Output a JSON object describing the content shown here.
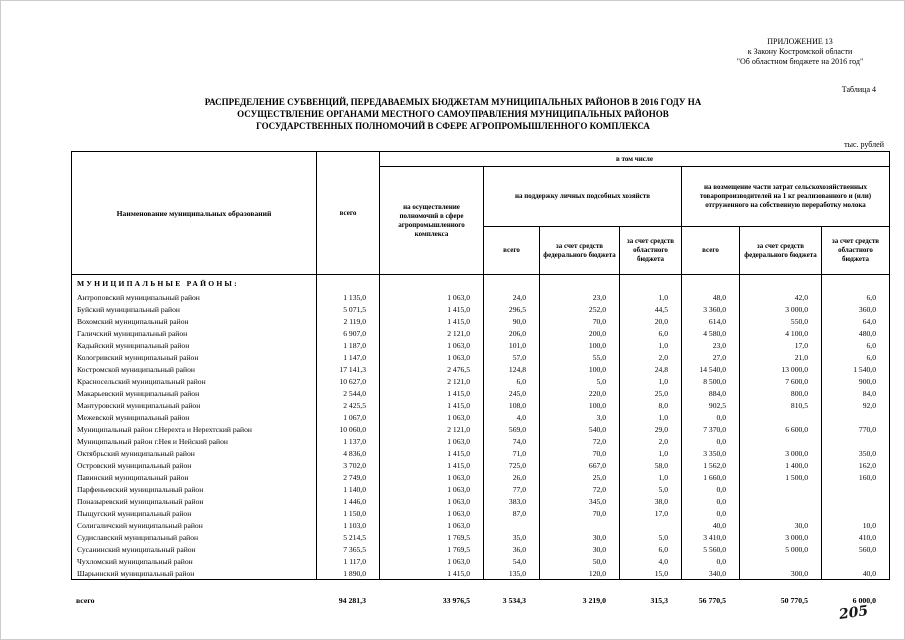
{
  "header": {
    "appendix_lines": [
      "ПРИЛОЖЕНИЕ 13",
      "к Закону Костромской области",
      "\"Об областном бюджете на 2016 год\""
    ],
    "table_label": "Таблица 4",
    "title_lines": [
      "РАСПРЕДЕЛЕНИЕ СУБВЕНЦИЙ, ПЕРЕДАВАЕМЫХ БЮДЖЕТАМ МУНИЦИПАЛЬНЫХ РАЙОНОВ В 2016 ГОДУ НА",
      "ОСУЩЕСТВЛЕНИЕ ОРГАНАМИ МЕСТНОГО САМОУПРАВЛЕНИЯ  МУНИЦИПАЛЬНЫХ РАЙОНОВ",
      "ГОСУДАРСТВЕННЫХ ПОЛНОМОЧИЙ В СФЕРЕ АГРОПРОМЫШЛЕННОГО КОМПЛЕКСА"
    ],
    "units": "тыс. рублей",
    "page_number": "205"
  },
  "table": {
    "headers": {
      "name": "Наименование муниципальных образований",
      "total": "всего",
      "including": "в том числе",
      "powers": "на осуществление полномочий в сфере агропромышленного комплекса",
      "support_group": "на поддержку личных подсобных хозяйств",
      "milk_group": "на возмещение части затрат сельскохозяйственных товаропроизводителей на 1 кг реализованного и (или) отгруженного на собственную переработку молока",
      "sub_total": "всего",
      "sub_federal": "за счет средств федерального бюджета",
      "sub_regional": "за счет средств областного бюджета"
    },
    "section": "МУНИЦИПАЛЬНЫЕ РАЙОНЫ:",
    "rows": [
      {
        "name": "Антроповский муниципальный район",
        "values": [
          "1 135,0",
          "1 063,0",
          "24,0",
          "23,0",
          "1,0",
          "48,0",
          "42,0",
          "6,0"
        ]
      },
      {
        "name": "Буйский муниципальный район",
        "values": [
          "5 071,5",
          "1 415,0",
          "296,5",
          "252,0",
          "44,5",
          "3 360,0",
          "3 000,0",
          "360,0"
        ]
      },
      {
        "name": "Вохомский муниципальный район",
        "values": [
          "2 119,0",
          "1 415,0",
          "90,0",
          "70,0",
          "20,0",
          "614,0",
          "550,0",
          "64,0"
        ]
      },
      {
        "name": "Галичский муниципальный район",
        "values": [
          "6 907,0",
          "2 121,0",
          "206,0",
          "200,0",
          "6,0",
          "4 580,0",
          "4 100,0",
          "480,0"
        ]
      },
      {
        "name": "Кадыйский муниципальный район",
        "values": [
          "1 187,0",
          "1 063,0",
          "101,0",
          "100,0",
          "1,0",
          "23,0",
          "17,0",
          "6,0"
        ]
      },
      {
        "name": "Кологривский муниципальный район",
        "values": [
          "1 147,0",
          "1 063,0",
          "57,0",
          "55,0",
          "2,0",
          "27,0",
          "21,0",
          "6,0"
        ]
      },
      {
        "name": "Костромской муниципальный район",
        "values": [
          "17 141,3",
          "2 476,5",
          "124,8",
          "100,0",
          "24,8",
          "14 540,0",
          "13 000,0",
          "1 540,0"
        ]
      },
      {
        "name": "Красносельский муниципальный район",
        "values": [
          "10 627,0",
          "2 121,0",
          "6,0",
          "5,0",
          "1,0",
          "8 500,0",
          "7 600,0",
          "900,0"
        ]
      },
      {
        "name": "Макарьевский муниципальный район",
        "values": [
          "2 544,0",
          "1 415,0",
          "245,0",
          "220,0",
          "25,0",
          "884,0",
          "800,0",
          "84,0"
        ]
      },
      {
        "name": "Мантуровский муниципальный район",
        "values": [
          "2 425,5",
          "1 415,0",
          "108,0",
          "100,0",
          "8,0",
          "902,5",
          "810,5",
          "92,0"
        ]
      },
      {
        "name": "Межевской муниципальный район",
        "values": [
          "1 067,0",
          "1 063,0",
          "4,0",
          "3,0",
          "1,0",
          "0,0",
          "",
          ""
        ]
      },
      {
        "name": "Муниципальный район г.Нерехта и Нерехтский район",
        "values": [
          "10 060,0",
          "2 121,0",
          "569,0",
          "540,0",
          "29,0",
          "7 370,0",
          "6 600,0",
          "770,0"
        ]
      },
      {
        "name": "Муниципальный район г.Нея и Нейский район",
        "values": [
          "1 137,0",
          "1 063,0",
          "74,0",
          "72,0",
          "2,0",
          "0,0",
          "",
          ""
        ]
      },
      {
        "name": "Октябрьский муниципальный район",
        "values": [
          "4 836,0",
          "1 415,0",
          "71,0",
          "70,0",
          "1,0",
          "3 350,0",
          "3 000,0",
          "350,0"
        ]
      },
      {
        "name": "Островский муниципальный район",
        "values": [
          "3 702,0",
          "1 415,0",
          "725,0",
          "667,0",
          "58,0",
          "1 562,0",
          "1 400,0",
          "162,0"
        ]
      },
      {
        "name": "Павинский муниципальный район",
        "values": [
          "2 749,0",
          "1 063,0",
          "26,0",
          "25,0",
          "1,0",
          "1 660,0",
          "1 500,0",
          "160,0"
        ]
      },
      {
        "name": "Парфеньевский муниципальный район",
        "values": [
          "1 140,0",
          "1 063,0",
          "77,0",
          "72,0",
          "5,0",
          "0,0",
          "",
          ""
        ]
      },
      {
        "name": "Поназыревский муниципальный район",
        "values": [
          "1 446,0",
          "1 063,0",
          "383,0",
          "345,0",
          "38,0",
          "0,0",
          "",
          ""
        ]
      },
      {
        "name": "Пыщугский муниципальный район",
        "values": [
          "1 150,0",
          "1 063,0",
          "87,0",
          "70,0",
          "17,0",
          "0,0",
          "",
          ""
        ]
      },
      {
        "name": "Солигаличский муниципальный район",
        "values": [
          "1 103,0",
          "1 063,0",
          "",
          "",
          "",
          "40,0",
          "30,0",
          "10,0"
        ]
      },
      {
        "name": "Судиславский муниципальный район",
        "values": [
          "5 214,5",
          "1 769,5",
          "35,0",
          "30,0",
          "5,0",
          "3 410,0",
          "3 000,0",
          "410,0"
        ]
      },
      {
        "name": "Сусанинский муниципальный район",
        "values": [
          "7 365,5",
          "1 769,5",
          "36,0",
          "30,0",
          "6,0",
          "5 560,0",
          "5 000,0",
          "560,0"
        ]
      },
      {
        "name": "Чухломский муниципальный район",
        "values": [
          "1 117,0",
          "1 063,0",
          "54,0",
          "50,0",
          "4,0",
          "0,0",
          "",
          ""
        ]
      },
      {
        "name": "Шарьинский муниципальный район",
        "values": [
          "1 890,0",
          "1 415,0",
          "135,0",
          "120,0",
          "15,0",
          "340,0",
          "300,0",
          "40,0"
        ]
      }
    ],
    "total": {
      "label": "всего",
      "values": [
        "94 281,3",
        "33 976,5",
        "3 534,3",
        "3 219,0",
        "315,3",
        "56 770,5",
        "50 770,5",
        "6 000,0"
      ]
    }
  }
}
